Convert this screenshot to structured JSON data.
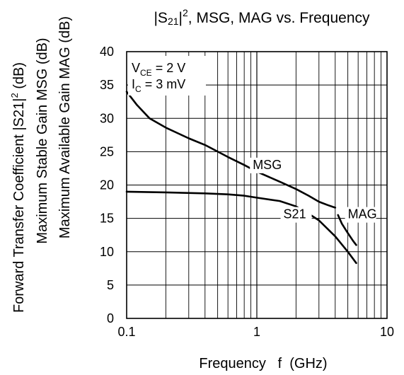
{
  "chart_data": {
    "type": "line",
    "title_parts": {
      "prefix": "|S",
      "sub": "21",
      "mid": "|",
      "sup": "2",
      "suffix": ", MSG, MAG vs. Frequency"
    },
    "xlabel": "Frequency   f  (GHz)",
    "ylabel_lines": [
      {
        "prefix": "Forward Transfer Coefficient   |S21|",
        "sup": "2",
        "suffix": "  (dB)"
      },
      {
        "prefix": "Maximum Stable Gain   MSG  (dB)",
        "sup": "",
        "suffix": ""
      },
      {
        "prefix": "Maximum Available Gain   MAG  (dB)",
        "sup": "",
        "suffix": ""
      }
    ],
    "xscale": "log",
    "xlim": [
      0.1,
      10
    ],
    "ylim": [
      0,
      40
    ],
    "x_ticks": [
      {
        "value": 0.1,
        "label": "0.1"
      },
      {
        "value": 1,
        "label": "1"
      },
      {
        "value": 10,
        "label": "10"
      }
    ],
    "y_ticks": [
      0,
      5,
      10,
      15,
      20,
      25,
      30,
      35,
      40
    ],
    "grid": true,
    "conditions": [
      {
        "prefix": "V",
        "sub": "CE",
        "suffix": " = 2 V"
      },
      {
        "prefix": "I",
        "sub": "C",
        "suffix": " = 3 mV"
      }
    ],
    "series": [
      {
        "name": "MSG",
        "x": [
          0.1,
          0.12,
          0.15,
          0.2,
          0.3,
          0.4,
          0.6,
          0.8,
          1,
          1.5,
          2,
          2.5,
          3,
          3.5,
          4
        ],
        "y": [
          34,
          32,
          30,
          28.6,
          27,
          26,
          24.2,
          23,
          22,
          20.5,
          19.4,
          18.4,
          17.5,
          17,
          16.6
        ]
      },
      {
        "name": "S21",
        "x": [
          0.1,
          0.2,
          0.4,
          0.6,
          0.8,
          1,
          1.5,
          2,
          2.5,
          3,
          4,
          5,
          5.8
        ],
        "y": [
          19,
          18.9,
          18.75,
          18.6,
          18.4,
          18.1,
          17.6,
          16.8,
          15.7,
          14.7,
          12.3,
          10,
          8.3
        ]
      },
      {
        "name": "MAG",
        "x": [
          4.2,
          4.5,
          5,
          5.5,
          5.8
        ],
        "y": [
          15.5,
          14.2,
          12.8,
          11.6,
          11
        ]
      }
    ],
    "annotations": [
      {
        "series": "MSG",
        "text": "MSG",
        "x": 0.93,
        "y": 22.4
      },
      {
        "series": "S21",
        "text": "S21",
        "x": 1.6,
        "y": 15.0
      },
      {
        "series": "MAG",
        "text": "MAG",
        "x": 5.0,
        "y": 15.0
      }
    ]
  }
}
